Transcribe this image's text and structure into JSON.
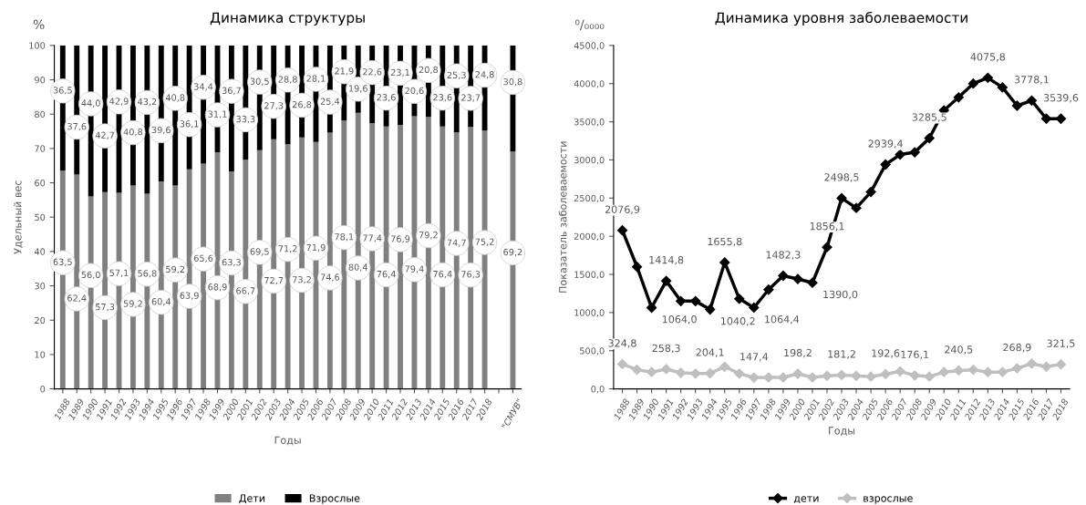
{
  "chart_data": [
    {
      "type": "bar",
      "title": "Динамика структуры",
      "xlabel": "Годы",
      "ylabel": "Удельный вес",
      "annotations": [
        "%"
      ],
      "categories": [
        "1988",
        "1989",
        "1990",
        "1991",
        "1992",
        "1993",
        "1994",
        "1995",
        "1996",
        "1997",
        "1998",
        "1999",
        "2000",
        "2001",
        "2002",
        "2003",
        "2004",
        "2005",
        "2006",
        "2007",
        "2008",
        "2009",
        "2010",
        "2011",
        "2012",
        "2013",
        "2014",
        "2015",
        "2016",
        "2017",
        "2018",
        null,
        "\"СМУВ\""
      ],
      "series": [
        {
          "name": "Дети",
          "color": "#808080",
          "values": [
            63.5,
            62.4,
            56.0,
            57.3,
            57.1,
            59.2,
            56.8,
            60.4,
            59.2,
            63.9,
            65.6,
            68.9,
            63.3,
            66.7,
            69.5,
            72.7,
            71.2,
            73.2,
            71.9,
            74.6,
            78.1,
            80.4,
            77.4,
            76.4,
            76.9,
            79.4,
            79.2,
            76.4,
            74.7,
            76.3,
            75.2,
            null,
            69.2
          ],
          "value_labels": [
            "63,5",
            "62,4",
            "56,0",
            "57,3",
            "57,1",
            "59,2",
            "56,8",
            "60,4",
            "59,2",
            "63,9",
            "65,6",
            "68,9",
            "63,3",
            "66,7",
            "69,5",
            "72,7",
            "71,2",
            "73,2",
            "71,9",
            "74,6",
            "78,1",
            "80,4",
            "77,4",
            "76,4",
            "76,9",
            "79,4",
            "79,2",
            "76,4",
            "74,7",
            "76,3",
            "75,2",
            null,
            "69,2"
          ]
        },
        {
          "name": "Взрослые",
          "color": "#000000",
          "values": [
            36.5,
            37.6,
            44.0,
            42.7,
            42.9,
            40.8,
            43.2,
            39.6,
            40.8,
            36.1,
            34.4,
            31.1,
            36.7,
            33.3,
            30.5,
            27.3,
            28.8,
            26.8,
            28.1,
            25.4,
            21.9,
            19.6,
            22.6,
            23.6,
            23.1,
            20.6,
            20.8,
            23.6,
            25.3,
            23.7,
            24.8,
            null,
            30.8
          ],
          "value_labels": [
            "36,5",
            "37,6",
            "44,0",
            "42,7",
            "42,9",
            "40,8",
            "43,2",
            "39,6",
            "40,8",
            "36,1",
            "34,4",
            "31,1",
            "36,7",
            "33,3",
            "30,5",
            "27,3",
            "28,8",
            "26,8",
            "28,1",
            "25,4",
            "21,9",
            "19,6",
            "22,6",
            "23,6",
            "23,1",
            "20,6",
            "20,8",
            "23,6",
            "25,3",
            "23,7",
            "24,8",
            null,
            "30,8"
          ]
        }
      ],
      "stacked": true,
      "ylim": [
        0,
        100
      ],
      "yticks": [
        0,
        10,
        20,
        30,
        40,
        50,
        60,
        70,
        80,
        90,
        100
      ],
      "grid": false,
      "legend": "bottom"
    },
    {
      "type": "line",
      "title": "Динамика уровня заболеваемости",
      "xlabel": "Годы",
      "ylabel": "Показатель заболеваемости",
      "annotations": [
        "⁰/₀₀₀₀"
      ],
      "categories": [
        "1988",
        "1989",
        "1990",
        "1991",
        "1992",
        "1993",
        "1994",
        "1995",
        "1996",
        "1997",
        "1998",
        "1999",
        "2000",
        "2001",
        "2002",
        "2003",
        "2004",
        "2005",
        "2006",
        "2007",
        "2008",
        "2009",
        "2010",
        "2011",
        "2012",
        "2013",
        "2014",
        "2015",
        "2016",
        "2017",
        "2018"
      ],
      "series": [
        {
          "name": "дети",
          "color": "#000000",
          "values": [
            2076.9,
            1600,
            1064.0,
            1414.8,
            1150,
            1150,
            1040.2,
            1655.8,
            1180,
            1064.4,
            1300,
            1482.3,
            1440,
            1390.0,
            1856.1,
            2498.5,
            2370,
            2580,
            2939.4,
            3070,
            3100,
            3285.5,
            3650,
            3820,
            4000,
            4075.8,
            3950,
            3710,
            3778.1,
            3540,
            3539.6
          ],
          "value_labels": [
            "2076,9",
            null,
            "1064,0",
            "1414,8",
            null,
            null,
            "1040,2",
            "1655,8",
            null,
            "1064,4",
            null,
            "1482,3",
            null,
            "1390,0",
            "1856,1",
            "2498,5",
            null,
            null,
            "2939,4",
            null,
            null,
            "3285,5",
            null,
            null,
            null,
            "4075,8",
            null,
            null,
            "3778,1",
            null,
            "3539,6"
          ]
        },
        {
          "name": "взрослые",
          "color": "#bfbfbf",
          "values": [
            324.8,
            250,
            220,
            258.3,
            210,
            200,
            204.1,
            290,
            200,
            147.4,
            150,
            150,
            198.2,
            150,
            170,
            181.2,
            170,
            160,
            192.6,
            230,
            176.1,
            160,
            220,
            240.5,
            250,
            220,
            220,
            268.9,
            330,
            290,
            321.5
          ],
          "value_labels": [
            "324,8",
            null,
            null,
            "258,3",
            null,
            null,
            "204,1",
            null,
            null,
            "147,4",
            null,
            null,
            "198,2",
            null,
            null,
            "181,2",
            null,
            null,
            "192,6",
            null,
            "176,1",
            null,
            null,
            "240,5",
            null,
            null,
            null,
            "268,9",
            null,
            null,
            "321,5"
          ]
        }
      ],
      "ylim": [
        0,
        4500
      ],
      "yticks": [
        {
          "value": 0,
          "label": "0,0"
        },
        {
          "value": 500,
          "label": "500,0"
        },
        {
          "value": 1000,
          "label": "1000,0"
        },
        {
          "value": 1500,
          "label": "1500,0"
        },
        {
          "value": 2000,
          "label": "2000,0"
        },
        {
          "value": 2500,
          "label": "2500,0"
        },
        {
          "value": 3000,
          "label": "3000,0"
        },
        {
          "value": 3500,
          "label": "3500,0"
        },
        {
          "value": 4000,
          "label": "4000,0"
        },
        {
          "value": 4500,
          "label": "4500,0"
        }
      ],
      "marker": "diamond",
      "line_style": "solid",
      "grid": false,
      "legend": "bottom"
    }
  ]
}
